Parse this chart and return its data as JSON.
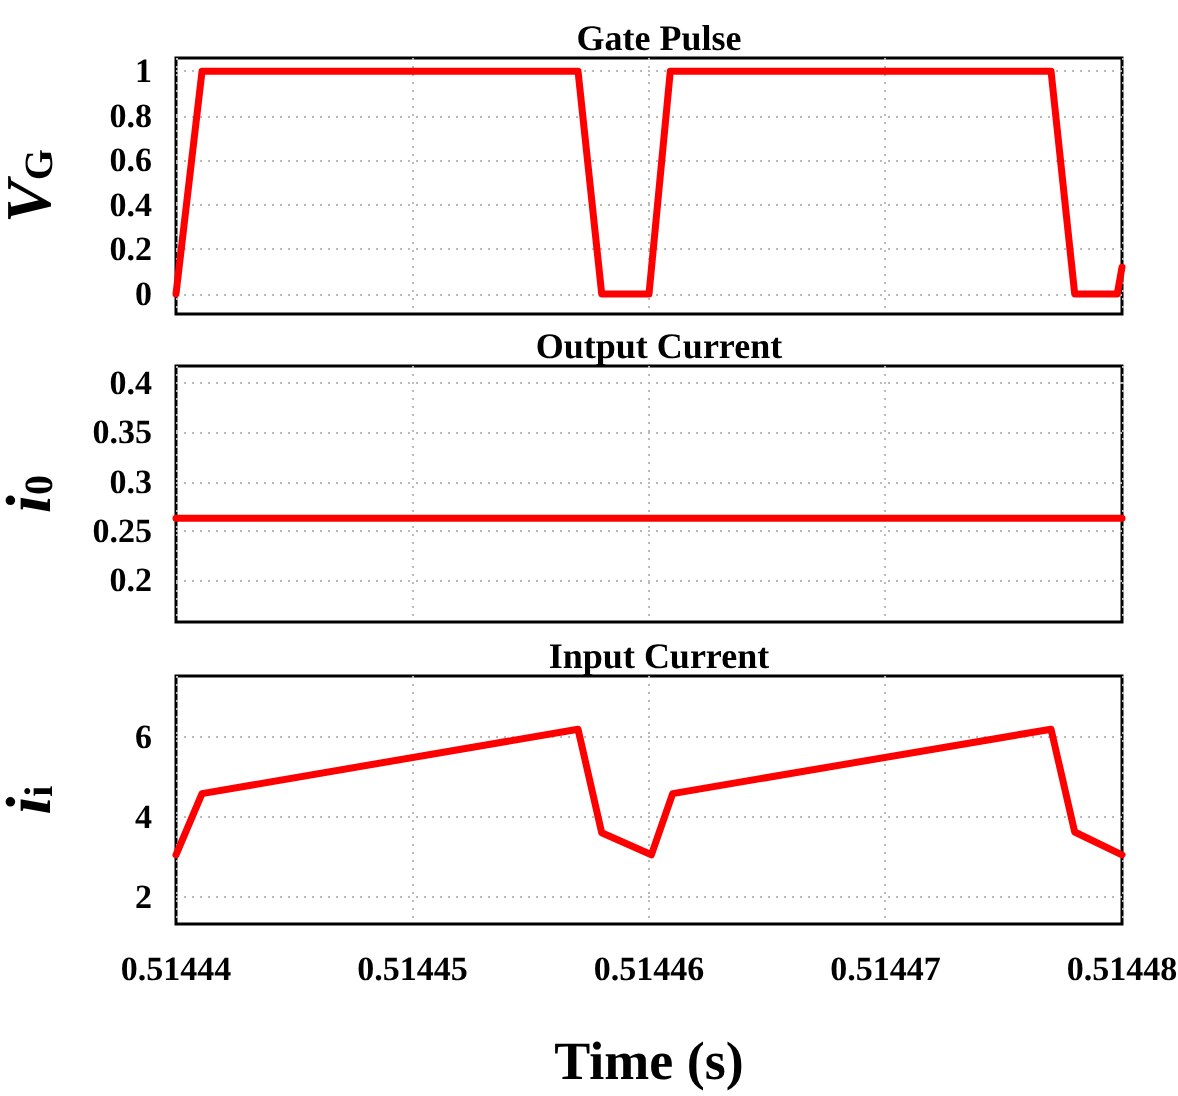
{
  "chart_data": [
    {
      "type": "line",
      "title": "Gate Pulse",
      "ylabel": "V$_{G}$",
      "color": "#ff0000",
      "grid": true,
      "tick_labels": "y",
      "x": [
        0.51444,
        0.5144411,
        0.514457,
        0.514458,
        0.51446,
        0.5144609,
        0.514477,
        0.514478,
        0.5144798,
        0.51448
      ],
      "values": [
        0,
        1,
        1,
        0,
        0,
        1,
        1,
        0,
        0,
        0.12
      ],
      "xlim": [
        0.51444,
        0.51448
      ],
      "xticks": [
        0.51444,
        0.51445,
        0.51446,
        0.51447,
        0.51448
      ],
      "ylim": [
        -0.09,
        1.06
      ],
      "yticks": [
        0,
        0.2,
        0.4,
        0.6,
        0.8,
        1
      ]
    },
    {
      "type": "line",
      "title": "Output Current",
      "ylabel": "i$_{0}$",
      "color": "#ff0000",
      "grid": true,
      "tick_labels": "y",
      "x": [
        0.51444,
        0.51448
      ],
      "values": [
        0.263,
        0.263
      ],
      "xlim": [
        0.51444,
        0.51448
      ],
      "xticks": [
        0.51444,
        0.51445,
        0.51446,
        0.51447,
        0.51448
      ],
      "ylim": [
        0.158,
        0.417
      ],
      "yticks": [
        0.2,
        0.25,
        0.3,
        0.35,
        0.4
      ]
    },
    {
      "type": "line",
      "title": "Input Current",
      "ylabel": "i$_{i}$",
      "xlabel": "Time (s)",
      "color": "#ff0000",
      "grid": true,
      "x": [
        0.51444,
        0.5144411,
        0.514457,
        0.514458,
        0.5144601,
        0.514461,
        0.514477,
        0.514478,
        0.51448
      ],
      "values": [
        3.05,
        4.58,
        6.19,
        3.6,
        3.05,
        4.58,
        6.19,
        3.62,
        3.05
      ],
      "xlim": [
        0.51444,
        0.51448
      ],
      "xticks": [
        0.51444,
        0.51445,
        0.51446,
        0.51447,
        0.51448
      ],
      "ylim": [
        1.32,
        7.52
      ],
      "yticks": [
        2,
        4,
        6
      ]
    }
  ]
}
